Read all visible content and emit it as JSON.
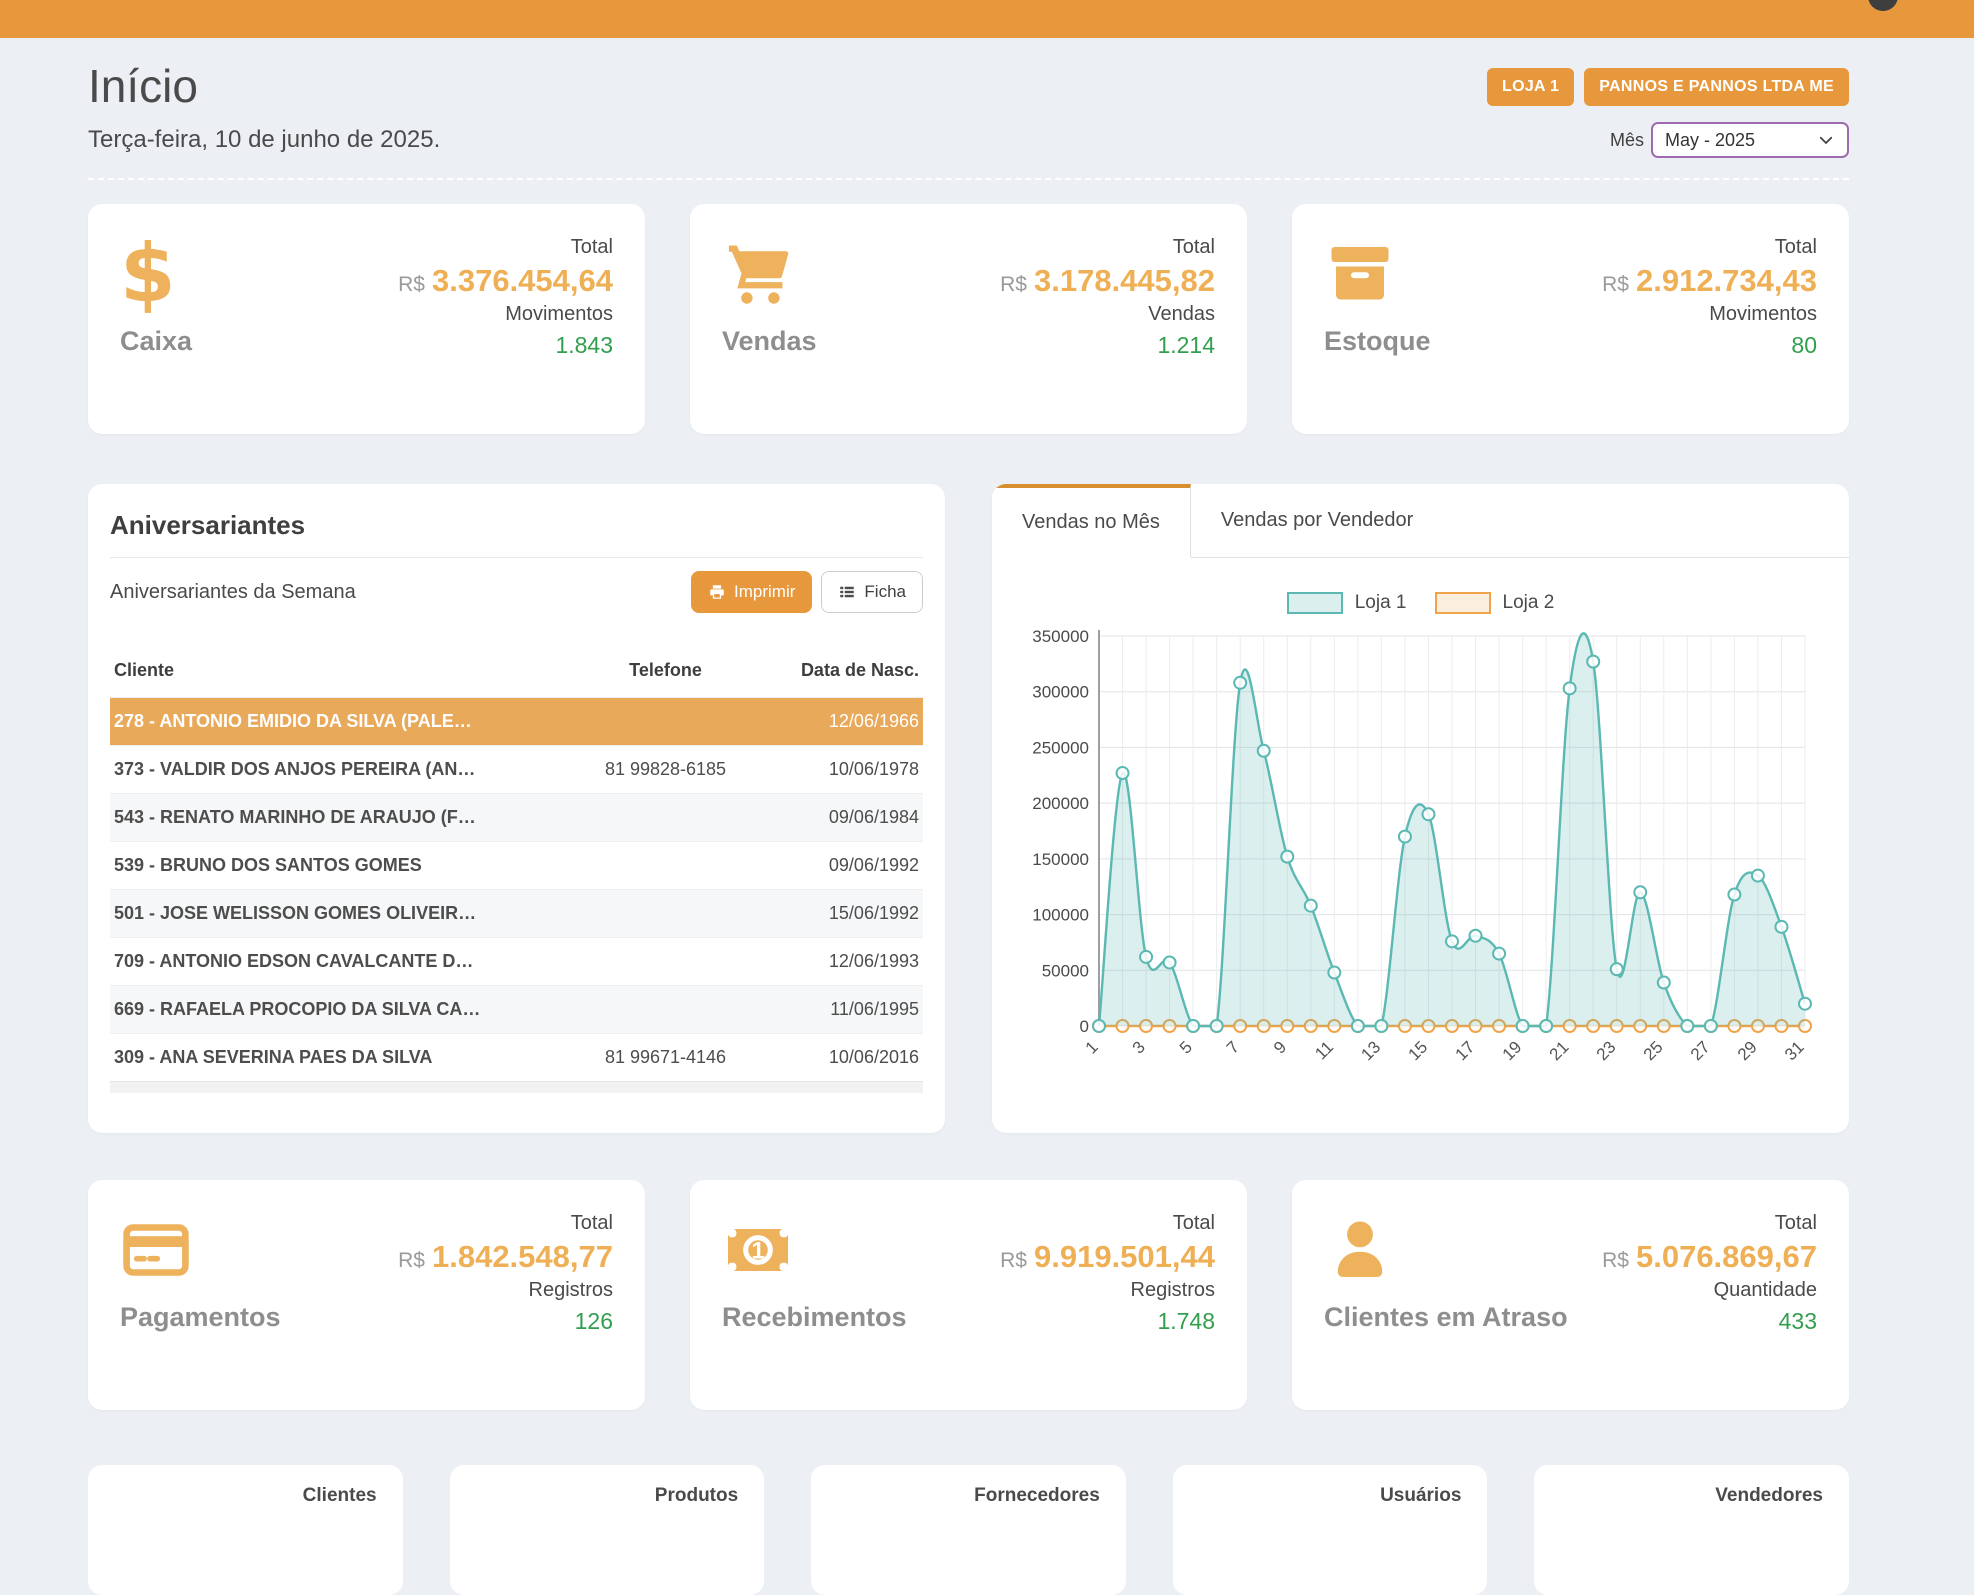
{
  "colors": {
    "accent_orange": "#E7983C",
    "value_orange": "#EFAF55",
    "icon_orange": "#EEB15C",
    "green": "#319F4D",
    "highlight_row": "#E9A95B",
    "select_border": "#9B6BAE",
    "tab_accent": "#D8902F",
    "background": "#ECEFF4"
  },
  "header": {
    "title": "Início",
    "date": "Terça-feira, 10 de junho de 2025.",
    "store_badge": "LOJA 1",
    "company_badge": "PANNOS E PANNOS LTDA ME",
    "month_label": "Mês",
    "month_value": "May - 2025"
  },
  "stat_cards": [
    {
      "icon": "dollar-sign",
      "title": "Caixa",
      "total_label": "Total",
      "currency": "R$",
      "total": "3.376.454,64",
      "count_label": "Movimentos",
      "count": "1.843"
    },
    {
      "icon": "shopping-cart",
      "title": "Vendas",
      "total_label": "Total",
      "currency": "R$",
      "total": "3.178.445,82",
      "count_label": "Vendas",
      "count": "1.214"
    },
    {
      "icon": "archive-box",
      "title": "Estoque",
      "total_label": "Total",
      "currency": "R$",
      "total": "2.912.734,43",
      "count_label": "Movimentos",
      "count": "80"
    }
  ],
  "birthdays": {
    "title": "Aniversariantes",
    "subtitle": "Aniversariantes da Semana",
    "print_button": "Imprimir",
    "ficha_button": "Ficha",
    "columns": [
      "Cliente",
      "Telefone",
      "Data de Nasc."
    ],
    "rows": [
      {
        "cliente": "278 - ANTONIO EMIDIO DA SILVA (PALE…",
        "telefone": "",
        "nascimento": "12/06/1966",
        "highlighted": true
      },
      {
        "cliente": "373 - VALDIR DOS ANJOS PEREIRA (AN…",
        "telefone": "81 99828-6185",
        "nascimento": "10/06/1978"
      },
      {
        "cliente": "543 - RENATO MARINHO DE ARAUJO (F…",
        "telefone": "",
        "nascimento": "09/06/1984"
      },
      {
        "cliente": "539 - BRUNO DOS SANTOS GOMES",
        "telefone": "",
        "nascimento": "09/06/1992"
      },
      {
        "cliente": "501 - JOSE WELISSON GOMES OLIVEIR…",
        "telefone": "",
        "nascimento": "15/06/1992"
      },
      {
        "cliente": "709 - ANTONIO EDSON CAVALCANTE D…",
        "telefone": "",
        "nascimento": "12/06/1993"
      },
      {
        "cliente": "669 - RAFAELA PROCOPIO DA SILVA CA…",
        "telefone": "",
        "nascimento": "11/06/1995"
      },
      {
        "cliente": "309 - ANA SEVERINA PAES DA SILVA",
        "telefone": "81 99671-4146",
        "nascimento": "10/06/2016"
      }
    ]
  },
  "sales_panel": {
    "tabs": [
      {
        "label": "Vendas no Mês",
        "active": true
      },
      {
        "label": "Vendas por Vendedor",
        "active": false
      }
    ]
  },
  "chart_data": {
    "type": "area",
    "title": "",
    "xlabel": "",
    "ylabel": "",
    "x": [
      1,
      2,
      3,
      4,
      5,
      6,
      7,
      8,
      9,
      10,
      11,
      12,
      13,
      14,
      15,
      16,
      17,
      18,
      19,
      20,
      21,
      22,
      23,
      24,
      25,
      26,
      27,
      28,
      29,
      30,
      31
    ],
    "x_tick_labels": [
      "1",
      "3",
      "5",
      "7",
      "9",
      "11",
      "13",
      "15",
      "17",
      "19",
      "21",
      "23",
      "25",
      "27",
      "29",
      "31"
    ],
    "ylim": [
      0,
      350000
    ],
    "yticks": [
      0,
      50000,
      100000,
      150000,
      200000,
      250000,
      300000,
      350000
    ],
    "grid": true,
    "legend_position": "top",
    "series": [
      {
        "name": "Loja 1",
        "color": "#5BB8B2",
        "fill": "rgba(91,184,178,0.22)",
        "values": [
          0,
          227000,
          62000,
          57000,
          0,
          0,
          308000,
          247000,
          152000,
          108000,
          48000,
          0,
          0,
          170000,
          190000,
          76000,
          81000,
          65000,
          0,
          0,
          303000,
          327000,
          51000,
          120000,
          39000,
          0,
          0,
          118000,
          135000,
          89000,
          20000
        ]
      },
      {
        "name": "Loja 2",
        "color": "#F0A348",
        "fill": "rgba(240,163,72,0.18)",
        "values": [
          0,
          0,
          0,
          0,
          0,
          0,
          0,
          0,
          0,
          0,
          0,
          0,
          0,
          0,
          0,
          0,
          0,
          0,
          0,
          0,
          0,
          0,
          0,
          0,
          0,
          0,
          0,
          0,
          0,
          0,
          0
        ]
      }
    ]
  },
  "summary_cards": [
    {
      "icon": "credit-card",
      "title": "Pagamentos",
      "total_label": "Total",
      "currency": "R$",
      "total": "1.842.548,77",
      "count_label": "Registros",
      "count": "126"
    },
    {
      "icon": "money-bill",
      "title": "Recebimentos",
      "total_label": "Total",
      "currency": "R$",
      "total": "9.919.501,44",
      "count_label": "Registros",
      "count": "1.748"
    },
    {
      "icon": "user",
      "title": "Clientes em Atraso",
      "total_label": "Total",
      "currency": "R$",
      "total": "5.076.869,67",
      "count_label": "Quantidade",
      "count": "433"
    }
  ],
  "bottom_cards": [
    {
      "title": "Clientes"
    },
    {
      "title": "Produtos"
    },
    {
      "title": "Fornecedores"
    },
    {
      "title": "Usuários"
    },
    {
      "title": "Vendedores"
    }
  ]
}
